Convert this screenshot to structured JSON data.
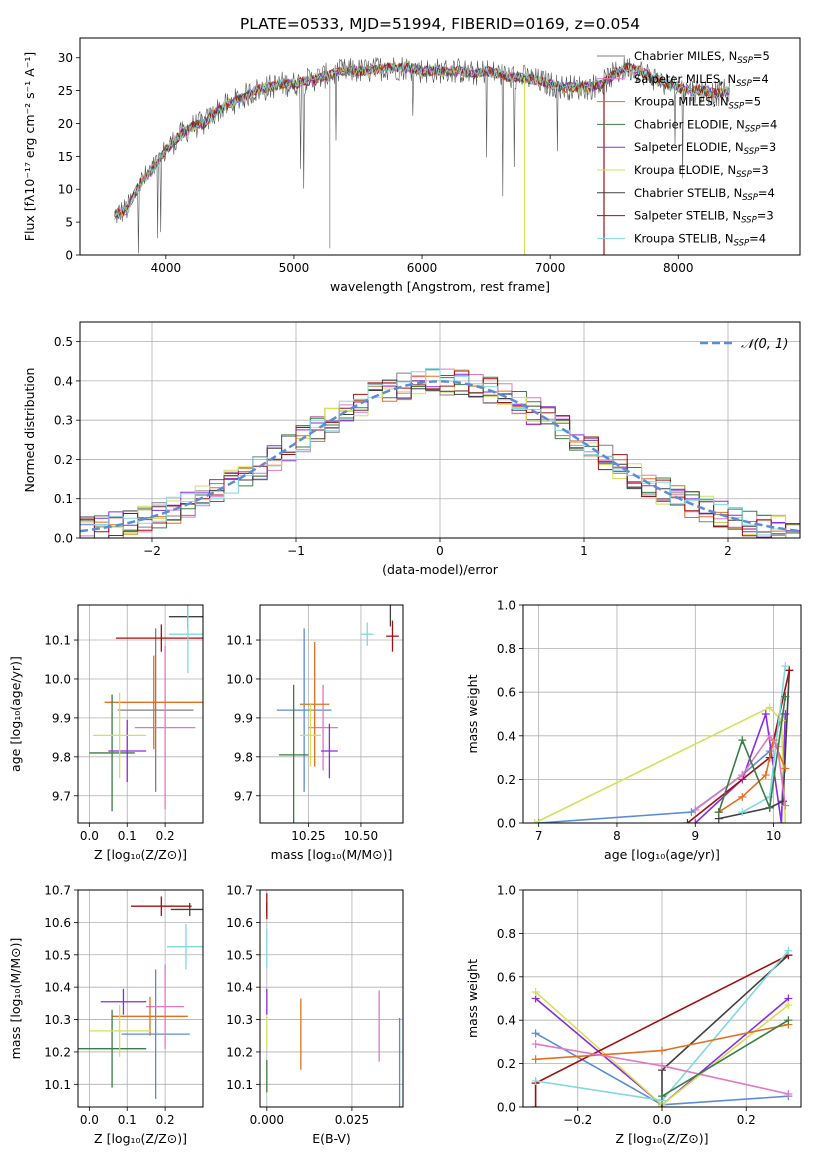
{
  "title": "PLATE=0533, MJD=51994, FIBERID=0169, z=0.054",
  "colors": {
    "chabrier_miles": "#808080",
    "salpeter_miles": "#e377c2",
    "kroupa_miles": "#e07020",
    "chabrier_elodie": "#3a7d44",
    "salpeter_elodie": "#8a2be2",
    "kroupa_elodie": "#d4e157",
    "chabrier_stelib": "#404040",
    "salpeter_stelib": "#a01010",
    "kroupa_stelib": "#80d8e0",
    "gaussian": "#5b8dd6",
    "blue_extra": "#5b8dd6"
  },
  "chart_data": [
    {
      "type": "line",
      "id": "spectrum",
      "xlabel": "wavelength [Angstrom, rest frame]",
      "ylabel": "Flux [fλ10⁻¹⁷ erg cm⁻² s⁻¹ A⁻¹]",
      "xlim": [
        3330,
        8950
      ],
      "ylim": [
        0,
        33
      ],
      "xticks": [
        4000,
        5000,
        6000,
        7000,
        8000
      ],
      "yticks": [
        0,
        5,
        10,
        15,
        20,
        25,
        30
      ],
      "grid": false,
      "legend_position": "right",
      "legend": [
        "Chabrier MILES, N_SSP=5",
        "Salpeter MILES, N_SSP=4",
        "Kroupa MILES, N_SSP=5",
        "Chabrier ELODIE, N_SSP=4",
        "Salpeter ELODIE, N_SSP=3",
        "Kroupa ELODIE, N_SSP=3",
        "Chabrier STELIB, N_SSP=4",
        "Salpeter STELIB, N_SSP=3",
        "Kroupa STELIB, N_SSP=4"
      ],
      "continuum": [
        [
          3600,
          6
        ],
        [
          3700,
          7
        ],
        [
          3800,
          11
        ],
        [
          3900,
          13
        ],
        [
          4000,
          16
        ],
        [
          4100,
          18
        ],
        [
          4200,
          19.5
        ],
        [
          4300,
          20
        ],
        [
          4400,
          22
        ],
        [
          4500,
          23
        ],
        [
          4600,
          24
        ],
        [
          4700,
          25
        ],
        [
          4800,
          25.5
        ],
        [
          4900,
          26
        ],
        [
          5000,
          26
        ],
        [
          5100,
          26.5
        ],
        [
          5200,
          27
        ],
        [
          5300,
          27.5
        ],
        [
          5400,
          28
        ],
        [
          5500,
          28
        ],
        [
          5600,
          28
        ],
        [
          5700,
          28.5
        ],
        [
          5800,
          28.5
        ],
        [
          5900,
          28.5
        ],
        [
          6000,
          28
        ],
        [
          6100,
          28
        ],
        [
          6200,
          28
        ],
        [
          6300,
          28
        ],
        [
          6400,
          27.5
        ],
        [
          6500,
          28
        ],
        [
          6600,
          27.5
        ],
        [
          6700,
          27
        ],
        [
          6800,
          27
        ],
        [
          6900,
          26.5
        ],
        [
          7000,
          26
        ],
        [
          7100,
          25.5
        ],
        [
          7200,
          25.5
        ],
        [
          7300,
          25.5
        ],
        [
          7400,
          26
        ],
        [
          7500,
          27.5
        ],
        [
          7600,
          28.5
        ],
        [
          7700,
          28
        ],
        [
          7800,
          27
        ],
        [
          7900,
          26
        ],
        [
          8000,
          25.5
        ],
        [
          8100,
          25
        ],
        [
          8200,
          25
        ],
        [
          8300,
          24.5
        ],
        [
          8400,
          25
        ]
      ],
      "gaps": [
        {
          "x": 6800,
          "series": "Kroupa ELODIE"
        },
        {
          "x": 7420,
          "series": "Salpeter STELIB"
        }
      ]
    },
    {
      "type": "histogram",
      "id": "residuals",
      "xlabel": "(data-model)/error",
      "ylabel": "Normed distribution",
      "xlim": [
        -2.5,
        2.5
      ],
      "ylim": [
        0,
        0.55
      ],
      "xticks": [
        -2,
        -1,
        0,
        1,
        2
      ],
      "yticks": [
        0.0,
        0.1,
        0.2,
        0.3,
        0.4,
        0.5
      ],
      "grid": true,
      "legend": [
        "𝒩(0, 1)"
      ],
      "legend_position": "top-right",
      "gaussian": {
        "mu": 0,
        "sigma": 1
      }
    },
    {
      "type": "errorbar",
      "id": "age_vs_Z",
      "xlabel": "Z [log₁₀(Z/Z⊙)]",
      "ylabel": "age  [log₁₀(age/yr)]",
      "xlim": [
        -0.03,
        0.3
      ],
      "ylim": [
        9.63,
        10.19
      ],
      "xticks": [
        0.0,
        0.1,
        0.2
      ],
      "yticks": [
        9.7,
        9.8,
        9.9,
        10.0,
        10.1
      ],
      "grid": true,
      "points": [
        {
          "series": "chabrier_miles",
          "x": 0.175,
          "y": 9.92,
          "xerr": 0.1,
          "yerr": 0.21
        },
        {
          "series": "salpeter_miles",
          "x": 0.2,
          "y": 9.875,
          "xerr": 0.08,
          "yerr": 0.21
        },
        {
          "series": "kroupa_miles",
          "x": 0.17,
          "y": 9.94,
          "xerr": 0.13,
          "yerr": 0.12
        },
        {
          "series": "chabrier_elodie",
          "x": 0.06,
          "y": 9.81,
          "xerr": 0.06,
          "yerr": 0.15
        },
        {
          "series": "salpeter_elodie",
          "x": 0.1,
          "y": 9.815,
          "xerr": 0.05,
          "yerr": 0.08
        },
        {
          "series": "kroupa_elodie",
          "x": 0.08,
          "y": 9.855,
          "xerr": 0.07,
          "yerr": 0.11
        },
        {
          "series": "chabrier_stelib",
          "x": 0.26,
          "y": 10.16,
          "xerr": 0.05,
          "yerr": 0.03
        },
        {
          "series": "salpeter_stelib",
          "x": 0.19,
          "y": 10.105,
          "xerr": 0.12,
          "yerr": 0.035
        },
        {
          "series": "kroupa_stelib",
          "x": 0.26,
          "y": 10.115,
          "xerr": 0.05,
          "yerr": 0.1
        },
        {
          "series": "blue_extra",
          "x": 0.02,
          "y": 9.805,
          "xerr": 0.0,
          "yerr": 0.0
        }
      ]
    },
    {
      "type": "errorbar",
      "id": "age_vs_mass",
      "xlabel": "mass [log₁₀(M/M⊙)]",
      "ylabel": "",
      "xlim": [
        10.02,
        10.7
      ],
      "ylim": [
        9.63,
        10.19
      ],
      "xticks": [
        10.25,
        10.5
      ],
      "yticks": [
        9.7,
        9.8,
        9.9,
        10.0,
        10.1
      ],
      "grid": true,
      "points": [
        {
          "series": "blue_extra",
          "x": 10.23,
          "y": 9.92,
          "xerr": 0.13,
          "yerr": 0.21
        },
        {
          "series": "salpeter_miles",
          "x": 10.32,
          "y": 9.875,
          "xerr": 0.07,
          "yerr": 0.11
        },
        {
          "series": "kroupa_miles",
          "x": 10.28,
          "y": 9.935,
          "xerr": 0.07,
          "yerr": 0.16
        },
        {
          "series": "chabrier_elodie",
          "x": 10.18,
          "y": 9.805,
          "xerr": 0.07,
          "yerr": 0.18
        },
        {
          "series": "salpeter_elodie",
          "x": 10.35,
          "y": 9.815,
          "xerr": 0.04,
          "yerr": 0.07
        },
        {
          "series": "kroupa_elodie",
          "x": 10.26,
          "y": 9.855,
          "xerr": 0.05,
          "yerr": 0.08
        },
        {
          "series": "chabrier_stelib",
          "x": 10.64,
          "y": 10.165,
          "xerr": 0.0,
          "yerr": 0.03
        },
        {
          "series": "salpeter_stelib",
          "x": 10.65,
          "y": 10.11,
          "xerr": 0.03,
          "yerr": 0.04
        },
        {
          "series": "kroupa_stelib",
          "x": 10.53,
          "y": 10.115,
          "xerr": 0.03,
          "yerr": 0.03
        }
      ]
    },
    {
      "type": "line",
      "id": "weight_vs_age",
      "xlabel": "age  [log₁₀(age/yr)]",
      "ylabel": "mass weight",
      "xlim": [
        6.8,
        10.35
      ],
      "ylim": [
        0,
        1.0
      ],
      "xticks": [
        7,
        8,
        9,
        10
      ],
      "yticks": [
        0.0,
        0.2,
        0.4,
        0.6,
        0.8,
        1.0
      ],
      "grid": true,
      "series": [
        {
          "key": "blue_extra",
          "points": [
            [
              7.0,
              0.0
            ],
            [
              8.95,
              0.05
            ],
            [
              9.6,
              0.22
            ],
            [
              9.95,
              0.33
            ],
            [
              10.12,
              0.5
            ]
          ]
        },
        {
          "key": "salpeter_elodie",
          "points": [
            [
              9.0,
              0.0
            ],
            [
              9.6,
              0.2
            ],
            [
              9.9,
              0.5
            ],
            [
              10.1,
              0.0
            ],
            [
              10.15,
              0.5
            ]
          ]
        },
        {
          "key": "kroupa_elodie",
          "points": [
            [
              6.95,
              0.0
            ],
            [
              9.95,
              0.53
            ],
            [
              10.1,
              0.47
            ],
            [
              10.15,
              0.0
            ]
          ]
        },
        {
          "key": "chabrier_stelib",
          "points": [
            [
              9.3,
              0.02
            ],
            [
              9.95,
              0.07
            ],
            [
              10.12,
              0.1
            ],
            [
              10.2,
              0.7
            ]
          ]
        },
        {
          "key": "salpeter_stelib",
          "points": [
            [
              8.9,
              0.0
            ],
            [
              9.95,
              0.3
            ],
            [
              10.2,
              0.7
            ]
          ]
        },
        {
          "key": "kroupa_stelib",
          "points": [
            [
              9.6,
              0.05
            ],
            [
              9.95,
              0.12
            ],
            [
              10.15,
              0.72
            ]
          ]
        },
        {
          "key": "kroupa_miles",
          "points": [
            [
              9.3,
              0.05
            ],
            [
              9.6,
              0.12
            ],
            [
              9.9,
              0.22
            ],
            [
              10.0,
              0.38
            ],
            [
              10.15,
              0.25
            ]
          ]
        },
        {
          "key": "salpeter_miles",
          "points": [
            [
              9.0,
              0.06
            ],
            [
              9.6,
              0.22
            ],
            [
              9.95,
              0.4
            ],
            [
              10.05,
              0.35
            ],
            [
              10.15,
              0.08
            ]
          ]
        },
        {
          "key": "chabrier_elodie",
          "points": [
            [
              9.3,
              0.05
            ],
            [
              9.6,
              0.38
            ],
            [
              9.95,
              0.07
            ],
            [
              10.15,
              0.58
            ]
          ]
        }
      ]
    },
    {
      "type": "errorbar",
      "id": "mass_vs_Z",
      "xlabel": "Z [log₁₀(Z/Z⊙)]",
      "ylabel": "mass [log₁₀(M/M⊙)]",
      "xlim": [
        -0.03,
        0.3
      ],
      "ylim": [
        10.03,
        10.7
      ],
      "xticks": [
        0.0,
        0.1,
        0.2
      ],
      "yticks": [
        10.1,
        10.2,
        10.3,
        10.4,
        10.5,
        10.6,
        10.7
      ],
      "grid": true,
      "points": [
        {
          "series": "blue_extra",
          "x": 0.175,
          "y": 10.255,
          "xerr": 0.09,
          "yerr": 0.2
        },
        {
          "series": "salpeter_miles",
          "x": 0.2,
          "y": 10.34,
          "xerr": 0.05,
          "yerr": 0.13
        },
        {
          "series": "kroupa_miles",
          "x": 0.16,
          "y": 10.31,
          "xerr": 0.1,
          "yerr": 0.06
        },
        {
          "series": "chabrier_elodie",
          "x": 0.06,
          "y": 10.21,
          "xerr": 0.09,
          "yerr": 0.12
        },
        {
          "series": "salpeter_elodie",
          "x": 0.09,
          "y": 10.355,
          "xerr": 0.06,
          "yerr": 0.04
        },
        {
          "series": "kroupa_elodie",
          "x": 0.08,
          "y": 10.265,
          "xerr": 0.08,
          "yerr": 0.08
        },
        {
          "series": "chabrier_stelib",
          "x": 0.265,
          "y": 10.64,
          "xerr": 0.05,
          "yerr": 0.02
        },
        {
          "series": "salpeter_stelib",
          "x": 0.19,
          "y": 10.65,
          "xerr": 0.08,
          "yerr": 0.03
        },
        {
          "series": "kroupa_stelib",
          "x": 0.255,
          "y": 10.525,
          "xerr": 0.05,
          "yerr": 0.07
        }
      ]
    },
    {
      "type": "errorbar",
      "id": "mass_vs_ebv",
      "xlabel": "E(B-V)",
      "ylabel": "",
      "xlim": [
        -0.002,
        0.04
      ],
      "ylim": [
        10.03,
        10.7
      ],
      "xticks": [
        0.0,
        0.025
      ],
      "yticks": [
        10.1,
        10.2,
        10.3,
        10.4,
        10.5,
        10.6,
        10.7
      ],
      "grid": true,
      "points": [
        {
          "series": "blue_extra",
          "x": 0.039,
          "y": 10.165,
          "xerr": 0.0,
          "yerr": 0.14
        },
        {
          "series": "salpeter_miles",
          "x": 0.033,
          "y": 10.28,
          "xerr": 0.0,
          "yerr": 0.11
        },
        {
          "series": "kroupa_miles",
          "x": 0.01,
          "y": 10.255,
          "xerr": 0.0,
          "yerr": 0.11
        },
        {
          "series": "chabrier_elodie",
          "x": 0.0,
          "y": 10.125,
          "xerr": 0.0,
          "yerr": 0.05
        },
        {
          "series": "salpeter_elodie",
          "x": 0.0,
          "y": 10.355,
          "xerr": 0.0,
          "yerr": 0.04
        },
        {
          "series": "kroupa_elodie",
          "x": 0.0,
          "y": 10.265,
          "xerr": 0.0,
          "yerr": 0.05
        },
        {
          "series": "chabrier_stelib",
          "x": 0.0,
          "y": 10.64,
          "xerr": 0.0,
          "yerr": 0.02
        },
        {
          "series": "salpeter_stelib",
          "x": 0.0,
          "y": 10.65,
          "xerr": 0.0,
          "yerr": 0.04
        },
        {
          "series": "kroupa_stelib",
          "x": 0.0,
          "y": 10.52,
          "xerr": 0.0,
          "yerr": 0.06
        }
      ]
    },
    {
      "type": "line",
      "id": "weight_vs_Z",
      "xlabel": "Z [log₁₀(Z/Z⊙)]",
      "ylabel": "mass weight",
      "xlim": [
        -0.33,
        0.33
      ],
      "ylim": [
        0,
        1.0
      ],
      "xticks": [
        -0.2,
        0.0,
        0.2
      ],
      "yticks": [
        0.0,
        0.2,
        0.4,
        0.6,
        0.8,
        1.0
      ],
      "grid": true,
      "series": [
        {
          "key": "blue_extra",
          "points": [
            [
              -0.3,
              0.34
            ],
            [
              0.0,
              0.01
            ],
            [
              0.3,
              0.05
            ]
          ]
        },
        {
          "key": "salpeter_elodie",
          "points": [
            [
              -0.3,
              0.5
            ],
            [
              0.0,
              0.01
            ],
            [
              0.3,
              0.5
            ]
          ]
        },
        {
          "key": "kroupa_elodie",
          "points": [
            [
              -0.3,
              0.53
            ],
            [
              0.0,
              0.01
            ],
            [
              0.3,
              0.47
            ]
          ]
        },
        {
          "key": "chabrier_stelib",
          "points": [
            [
              0.0,
              0.0
            ],
            [
              0.0,
              0.17
            ],
            [
              0.3,
              0.7
            ]
          ]
        },
        {
          "key": "salpeter_stelib",
          "points": [
            [
              -0.3,
              0.0
            ],
            [
              -0.3,
              0.11
            ],
            [
              0.3,
              0.7
            ]
          ]
        },
        {
          "key": "kroupa_stelib",
          "points": [
            [
              -0.3,
              0.12
            ],
            [
              0.0,
              0.03
            ],
            [
              0.3,
              0.72
            ]
          ]
        },
        {
          "key": "kroupa_miles",
          "points": [
            [
              -0.3,
              0.22
            ],
            [
              0.0,
              0.26
            ],
            [
              0.3,
              0.38
            ]
          ]
        },
        {
          "key": "salpeter_miles",
          "points": [
            [
              -0.3,
              0.29
            ],
            [
              0.0,
              0.19
            ],
            [
              0.3,
              0.06
            ]
          ]
        },
        {
          "key": "chabrier_elodie",
          "points": [
            [
              0.0,
              0.05
            ],
            [
              0.3,
              0.4
            ]
          ]
        }
      ]
    }
  ]
}
